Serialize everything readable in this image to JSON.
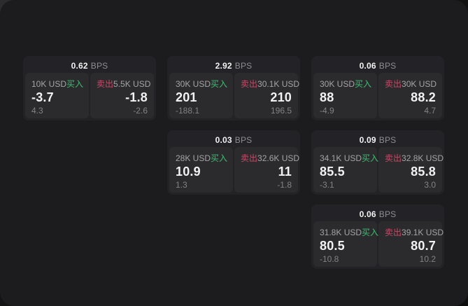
{
  "labels": {
    "bps_suffix": "BPS",
    "buy": "买入",
    "sell": "卖出"
  },
  "colors": {
    "page_bg": "#1c1c1e",
    "card_bg": "#232327",
    "panel_bg": "#2b2b2e",
    "buy": "#3dbd71",
    "sell": "#d04566"
  },
  "cards": [
    {
      "bps": "0.62",
      "buy": {
        "amount": "10K USD",
        "price": "-3.7",
        "delta": "4.3"
      },
      "sell": {
        "amount": "5.5K USD",
        "price": "-1.8",
        "delta": "-2.6"
      }
    },
    {
      "bps": "2.92",
      "buy": {
        "amount": "30K USD",
        "price": "201",
        "delta": "-188.1"
      },
      "sell": {
        "amount": "30.1K USD",
        "price": "210",
        "delta": "196.5"
      }
    },
    {
      "bps": "0.06",
      "buy": {
        "amount": "30K USD",
        "price": "88",
        "delta": "-4.9"
      },
      "sell": {
        "amount": "30K USD",
        "price": "88.2",
        "delta": "4.7"
      }
    },
    {
      "bps": "0.03",
      "buy": {
        "amount": "28K USD",
        "price": "10.9",
        "delta": "1.3"
      },
      "sell": {
        "amount": "32.6K USD",
        "price": "11",
        "delta": "-1.8"
      }
    },
    {
      "bps": "0.09",
      "buy": {
        "amount": "34.1K USD",
        "price": "85.5",
        "delta": "-3.1"
      },
      "sell": {
        "amount": "32.8K USD",
        "price": "85.8",
        "delta": "3.0"
      }
    },
    {
      "bps": "0.06",
      "buy": {
        "amount": "31.8K USD",
        "price": "80.5",
        "delta": "-10.8"
      },
      "sell": {
        "amount": "39.1K USD",
        "price": "80.7",
        "delta": "10.2"
      }
    }
  ]
}
